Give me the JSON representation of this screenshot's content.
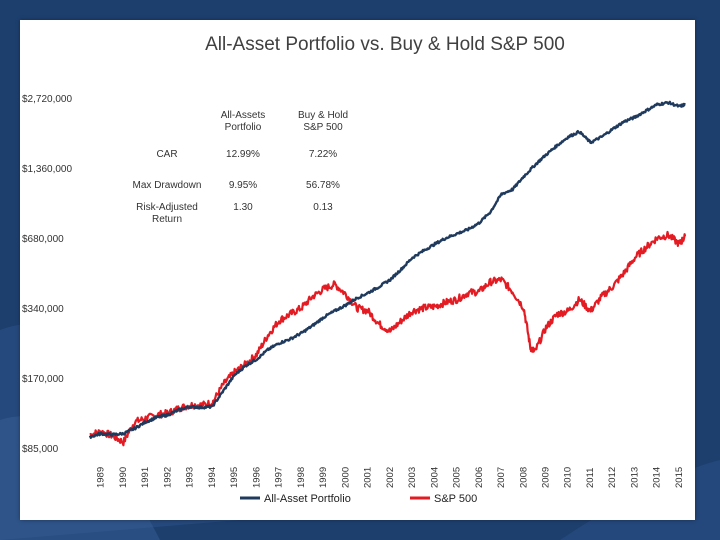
{
  "chart_data": {
    "type": "line",
    "title": "All-Asset Portfolio vs. Buy & Hold S&P 500",
    "xlabel": "",
    "ylabel": "",
    "y_scale": "log",
    "ylim": [
      85000,
      2720000
    ],
    "y_ticks": [
      "$85,000",
      "$170,000",
      "$340,000",
      "$680,000",
      "$1,360,000",
      "$2,720,000"
    ],
    "y_tick_values": [
      85000,
      170000,
      340000,
      680000,
      1360000,
      2720000
    ],
    "x_ticks": [
      "1989",
      "1990",
      "1991",
      "1992",
      "1993",
      "1994",
      "1995",
      "1996",
      "1997",
      "1998",
      "1999",
      "2000",
      "2001",
      "2002",
      "2003",
      "2004",
      "2005",
      "2006",
      "2007",
      "2008",
      "2009",
      "2010",
      "2011",
      "2012",
      "2013",
      "2014",
      "2015"
    ],
    "xlim": [
      1989.0,
      2015.75
    ],
    "grid": false,
    "legend_position": "bottom",
    "series": [
      {
        "name": "All-Asset Portfolio",
        "color": "#1f3a5c",
        "points": [
          [
            1989.0,
            95000
          ],
          [
            1989.5,
            98000
          ],
          [
            1990.0,
            97000
          ],
          [
            1990.5,
            98000
          ],
          [
            1991.0,
            103000
          ],
          [
            1991.5,
            110000
          ],
          [
            1992.0,
            115000
          ],
          [
            1992.5,
            118000
          ],
          [
            1993.0,
            124000
          ],
          [
            1993.5,
            128000
          ],
          [
            1994.0,
            127000
          ],
          [
            1994.5,
            128000
          ],
          [
            1995.0,
            150000
          ],
          [
            1995.5,
            175000
          ],
          [
            1996.0,
            192000
          ],
          [
            1996.5,
            205000
          ],
          [
            1997.0,
            225000
          ],
          [
            1997.5,
            240000
          ],
          [
            1998.0,
            250000
          ],
          [
            1998.5,
            265000
          ],
          [
            1999.0,
            285000
          ],
          [
            1999.5,
            310000
          ],
          [
            2000.0,
            330000
          ],
          [
            2000.5,
            350000
          ],
          [
            2001.0,
            375000
          ],
          [
            2001.5,
            395000
          ],
          [
            2002.0,
            420000
          ],
          [
            2002.5,
            450000
          ],
          [
            2003.0,
            500000
          ],
          [
            2003.5,
            560000
          ],
          [
            2004.0,
            600000
          ],
          [
            2004.5,
            640000
          ],
          [
            2005.0,
            680000
          ],
          [
            2005.5,
            710000
          ],
          [
            2006.0,
            740000
          ],
          [
            2006.5,
            790000
          ],
          [
            2007.0,
            880000
          ],
          [
            2007.5,
            1050000
          ],
          [
            2008.0,
            1100000
          ],
          [
            2008.5,
            1250000
          ],
          [
            2009.0,
            1400000
          ],
          [
            2009.5,
            1550000
          ],
          [
            2010.0,
            1700000
          ],
          [
            2010.5,
            1850000
          ],
          [
            2011.0,
            1950000
          ],
          [
            2011.5,
            1750000
          ],
          [
            2012.0,
            1850000
          ],
          [
            2012.5,
            2000000
          ],
          [
            2013.0,
            2150000
          ],
          [
            2013.5,
            2250000
          ],
          [
            2014.0,
            2400000
          ],
          [
            2014.5,
            2550000
          ],
          [
            2015.0,
            2600000
          ],
          [
            2015.5,
            2500000
          ],
          [
            2015.75,
            2550000
          ]
        ]
      },
      {
        "name": "S&P 500",
        "color": "#e31b23",
        "points": [
          [
            1989.0,
            97000
          ],
          [
            1989.5,
            100000
          ],
          [
            1990.0,
            96000
          ],
          [
            1990.5,
            90000
          ],
          [
            1991.0,
            110000
          ],
          [
            1991.5,
            114000
          ],
          [
            1992.0,
            118000
          ],
          [
            1992.5,
            120000
          ],
          [
            1993.0,
            126000
          ],
          [
            1993.5,
            130000
          ],
          [
            1994.0,
            130000
          ],
          [
            1994.5,
            133000
          ],
          [
            1995.0,
            160000
          ],
          [
            1995.5,
            180000
          ],
          [
            1996.0,
            195000
          ],
          [
            1996.5,
            215000
          ],
          [
            1997.0,
            260000
          ],
          [
            1997.5,
            300000
          ],
          [
            1998.0,
            320000
          ],
          [
            1998.5,
            340000
          ],
          [
            1999.0,
            380000
          ],
          [
            1999.5,
            410000
          ],
          [
            2000.0,
            430000
          ],
          [
            2000.5,
            390000
          ],
          [
            2001.0,
            340000
          ],
          [
            2001.5,
            330000
          ],
          [
            2002.0,
            290000
          ],
          [
            2002.5,
            270000
          ],
          [
            2003.0,
            300000
          ],
          [
            2003.5,
            330000
          ],
          [
            2004.0,
            340000
          ],
          [
            2004.5,
            345000
          ],
          [
            2005.0,
            360000
          ],
          [
            2005.5,
            370000
          ],
          [
            2006.0,
            395000
          ],
          [
            2006.5,
            400000
          ],
          [
            2007.0,
            440000
          ],
          [
            2007.5,
            450000
          ],
          [
            2008.0,
            400000
          ],
          [
            2008.5,
            340000
          ],
          [
            2008.8,
            230000
          ],
          [
            2009.0,
            220000
          ],
          [
            2009.5,
            280000
          ],
          [
            2010.0,
            320000
          ],
          [
            2010.5,
            330000
          ],
          [
            2011.0,
            370000
          ],
          [
            2011.5,
            330000
          ],
          [
            2012.0,
            380000
          ],
          [
            2012.5,
            420000
          ],
          [
            2013.0,
            480000
          ],
          [
            2013.5,
            560000
          ],
          [
            2014.0,
            620000
          ],
          [
            2014.5,
            680000
          ],
          [
            2015.0,
            700000
          ],
          [
            2015.5,
            640000
          ],
          [
            2015.75,
            690000
          ]
        ]
      }
    ],
    "stats_table": {
      "headers": [
        "",
        "All-Assets Portfolio",
        "Buy & Hold S&P 500"
      ],
      "header_lines": [
        [
          "All-Assets",
          "Portfolio"
        ],
        [
          "Buy & Hold",
          "S&P 500"
        ]
      ],
      "rows": [
        {
          "label_lines": [
            "CAR"
          ],
          "values": [
            "12.99%",
            "7.22%"
          ]
        },
        {
          "label_lines": [
            "Max Drawdown"
          ],
          "values": [
            "9.95%",
            "56.78%"
          ]
        },
        {
          "label_lines": [
            "Risk-Adjusted",
            "Return"
          ],
          "values": [
            "1.30",
            "0.13"
          ]
        }
      ]
    }
  },
  "colors": {
    "background": "#1d3f6e",
    "panel": "#ffffff",
    "portfolio_line": "#1f3a5c",
    "sp500_line": "#e31b23"
  }
}
